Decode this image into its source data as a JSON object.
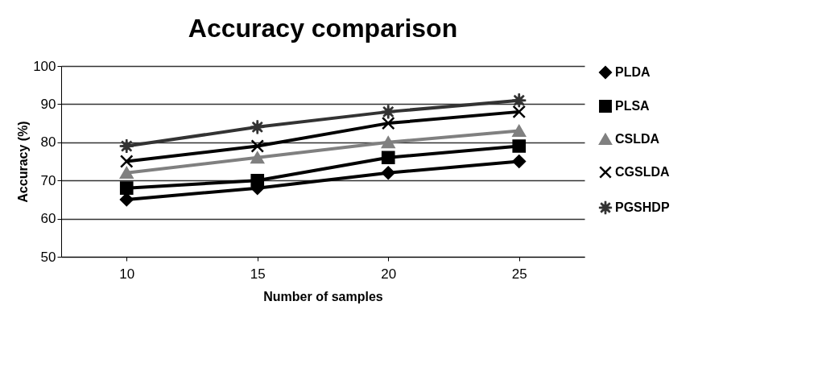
{
  "chart_data": {
    "type": "line",
    "title": "Accuracy comparison",
    "xlabel": "Number of samples",
    "ylabel": "Accuracy (%)",
    "categories": [
      "10",
      "15",
      "20",
      "25"
    ],
    "series": [
      {
        "name": "PLDA",
        "color": "#000000",
        "marker": "diamond",
        "values": [
          65,
          68,
          72,
          75
        ]
      },
      {
        "name": "PLSA",
        "color": "#000000",
        "marker": "square",
        "values": [
          68,
          70,
          76,
          79
        ]
      },
      {
        "name": "CSLDA",
        "color": "#808080",
        "marker": "triangle",
        "values": [
          72,
          76,
          80,
          83
        ]
      },
      {
        "name": "CGSLDA",
        "color": "#000000",
        "marker": "cross",
        "values": [
          75,
          79,
          85,
          88
        ]
      },
      {
        "name": "PGSHDP",
        "color": "#333333",
        "marker": "star",
        "values": [
          79,
          84,
          88,
          91
        ]
      }
    ],
    "ylim": [
      50,
      100
    ],
    "yticks": [
      50,
      60,
      70,
      80,
      90,
      100
    ],
    "grid": "y",
    "legend": "right",
    "line_style": "solid"
  }
}
